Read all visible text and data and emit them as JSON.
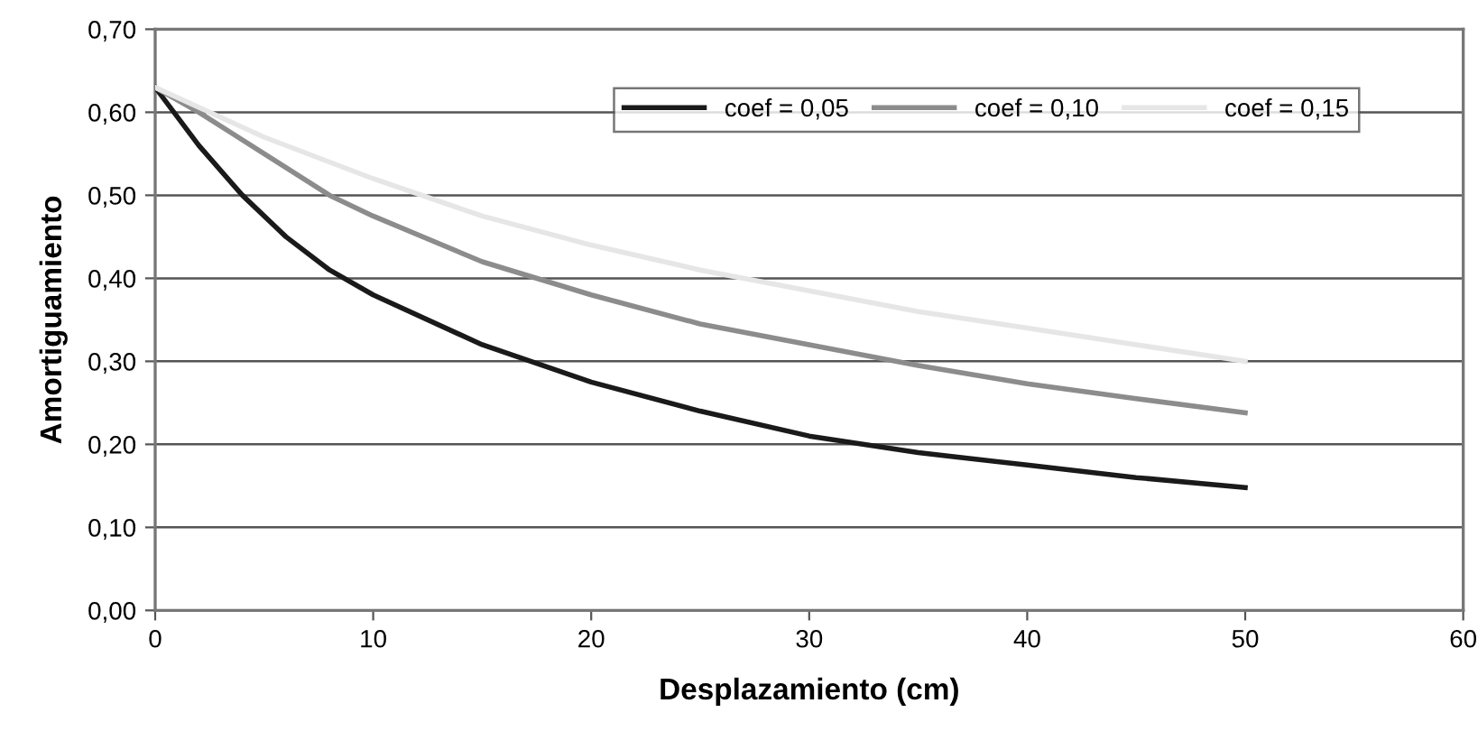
{
  "chart_data": {
    "type": "line",
    "xlabel": "Desplazamiento (cm)",
    "ylabel": "Amortiguamiento",
    "xlim": [
      0,
      60
    ],
    "xticks": [
      0,
      10,
      20,
      30,
      40,
      50,
      60
    ],
    "ylim": [
      0,
      0.7
    ],
    "yticks": [
      {
        "value": 0,
        "label": "0,00"
      },
      {
        "value": 0.1,
        "label": "0,10"
      },
      {
        "value": 0.2,
        "label": "0,20"
      },
      {
        "value": 0.3,
        "label": "0,30"
      },
      {
        "value": 0.4,
        "label": "0,40"
      },
      {
        "value": 0.5,
        "label": "0,50"
      },
      {
        "value": 0.6,
        "label": "0,60"
      },
      {
        "value": 0.7,
        "label": "0,70"
      }
    ],
    "grid": "y",
    "legend": "top right",
    "marker": "none",
    "line_style": "solid",
    "series": [
      {
        "name": "coef = 0,05",
        "color": "#1a1a1a",
        "x": [
          0,
          2,
          4,
          6,
          8,
          10,
          15,
          20,
          25,
          30,
          35,
          40,
          45,
          50
        ],
        "values": [
          0.63,
          0.56,
          0.5,
          0.45,
          0.41,
          0.38,
          0.32,
          0.275,
          0.24,
          0.21,
          0.19,
          0.175,
          0.16,
          0.148
        ]
      },
      {
        "name": "coef = 0,10",
        "color": "#8c8c8c",
        "x": [
          0,
          2,
          5,
          8,
          10,
          15,
          20,
          25,
          30,
          35,
          40,
          45,
          50
        ],
        "values": [
          0.63,
          0.6,
          0.55,
          0.5,
          0.475,
          0.42,
          0.38,
          0.345,
          0.32,
          0.295,
          0.273,
          0.255,
          0.238
        ]
      },
      {
        "name": "coef = 0,15",
        "color": "#e6e6e6",
        "x": [
          0,
          5,
          10,
          15,
          20,
          25,
          30,
          35,
          40,
          45,
          50
        ],
        "values": [
          0.63,
          0.57,
          0.52,
          0.475,
          0.44,
          0.41,
          0.385,
          0.36,
          0.34,
          0.32,
          0.3
        ]
      }
    ]
  }
}
